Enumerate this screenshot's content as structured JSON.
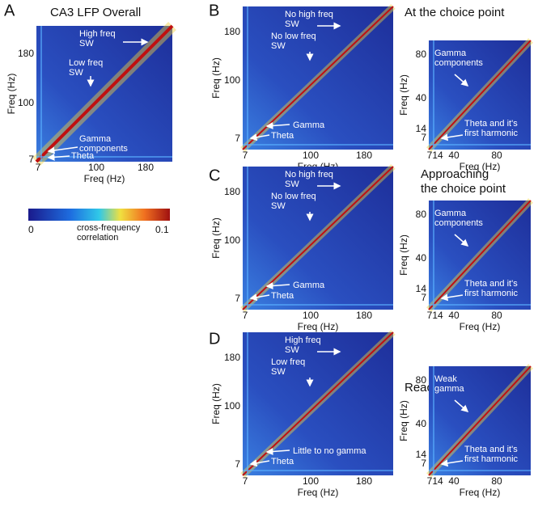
{
  "panels": [
    {
      "letter": "A",
      "title": [
        "CA3 LFP Overall"
      ],
      "maps": [
        {
          "xticks": [
            "7",
            "100",
            "180"
          ],
          "yticks": [
            "180",
            "100",
            "7"
          ],
          "xlabel": "Freq (Hz)",
          "ylabel": "Freq (Hz)",
          "annotations": [
            [
              "High freq",
              "SW"
            ],
            [
              "Low freq",
              "SW"
            ],
            [
              "Gamma",
              "components"
            ],
            [
              "Theta"
            ]
          ]
        }
      ]
    },
    {
      "letter": "B",
      "title": [
        "At the choice point"
      ],
      "maps": [
        {
          "xticks": [
            "7",
            "100",
            "180"
          ],
          "yticks": [
            "180",
            "100",
            "7"
          ],
          "xlabel": "Freq (Hz)",
          "ylabel": "Freq (Hz)",
          "annotations": [
            [
              "No high freq",
              "SW"
            ],
            [
              "No low freq",
              "SW"
            ],
            [
              "Gamma"
            ],
            [
              "Theta"
            ]
          ]
        },
        {
          "xticks": [
            "7",
            "14",
            "40",
            "80"
          ],
          "yticks": [
            "80",
            "40",
            "14",
            "7"
          ],
          "xlabel": "Freq (Hz)",
          "ylabel": "Freq (Hz)",
          "annotations": [
            [
              "Gamma",
              "components"
            ],
            [
              "Theta and it's",
              "first harmonic"
            ]
          ]
        }
      ]
    },
    {
      "letter": "C",
      "title": [
        "Approaching",
        "the choice point"
      ],
      "maps": [
        {
          "xticks": [
            "7",
            "100",
            "180"
          ],
          "yticks": [
            "180",
            "100",
            "7"
          ],
          "xlabel": "Freq (Hz)",
          "ylabel": "Freq (Hz)",
          "annotations": [
            [
              "No high freq",
              "SW"
            ],
            [
              "No low freq",
              "SW"
            ],
            [
              "Gamma"
            ],
            [
              "Theta"
            ]
          ]
        },
        {
          "xticks": [
            "7",
            "14",
            "40",
            "80"
          ],
          "yticks": [
            "80",
            "40",
            "14",
            "7"
          ],
          "xlabel": "Freq (Hz)",
          "ylabel": "Freq (Hz)",
          "annotations": [
            [
              "Gamma",
              "components"
            ],
            [
              "Theta and it's",
              "first harmonic"
            ]
          ]
        }
      ]
    },
    {
      "letter": "D",
      "title": [
        "Reaching the feeders"
      ],
      "maps": [
        {
          "xticks": [
            "7",
            "100",
            "180"
          ],
          "yticks": [
            "180",
            "100",
            "7"
          ],
          "xlabel": "Freq (Hz)",
          "ylabel": "Freq (Hz)",
          "annotations": [
            [
              "High freq",
              "SW"
            ],
            [
              "Low freq",
              "SW"
            ],
            [
              "Little to no gamma"
            ],
            [
              "Theta"
            ]
          ]
        },
        {
          "xticks": [
            "7",
            "14",
            "40",
            "80"
          ],
          "yticks": [
            "80",
            "40",
            "14",
            "7"
          ],
          "xlabel": "Freq (Hz)",
          "ylabel": "Freq (Hz)",
          "annotations": [
            [
              "Weak",
              "gamma"
            ],
            [
              "Theta and it's",
              "first harmonic"
            ]
          ]
        }
      ]
    }
  ],
  "colorbar": {
    "min": "0",
    "max": "0.1",
    "label": [
      "cross-frequency",
      "correlation"
    ]
  }
}
